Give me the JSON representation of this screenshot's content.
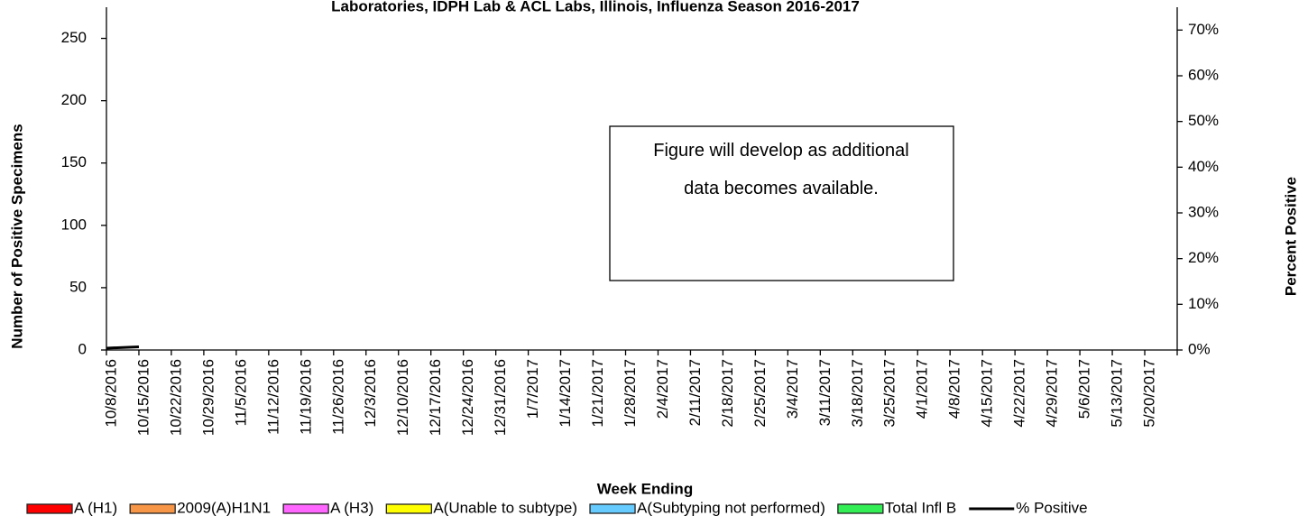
{
  "chart_data": {
    "type": "bar",
    "stacked": true,
    "title": "Laboratories, IDPH Lab & ACL Labs, Illinois, Influenza Season 2016-2017",
    "x_label": "Week Ending",
    "y_label": "Number of  Positive Specimens",
    "y2_label": "Percent Positive",
    "annotation": "Figure will develop as additional data becomes available.",
    "categories": [
      "10/8/2016",
      "10/15/2016",
      "10/22/2016",
      "10/29/2016",
      "11/5/2016",
      "11/12/2016",
      "11/19/2016",
      "11/26/2016",
      "12/3/2016",
      "12/10/2016",
      "12/17/2016",
      "12/24/2016",
      "12/31/2016",
      "1/7/2017",
      "1/14/2017",
      "1/21/2017",
      "1/28/2017",
      "2/4/2017",
      "2/11/2017",
      "2/18/2017",
      "2/25/2017",
      "3/4/2017",
      "3/11/2017",
      "3/18/2017",
      "3/25/2017",
      "4/1/2017",
      "4/8/2017",
      "4/15/2017",
      "4/22/2017",
      "4/29/2017",
      "5/6/2017",
      "5/13/2017",
      "5/20/2017"
    ],
    "ylim": [
      0,
      275
    ],
    "yticks": [
      0,
      50,
      100,
      150,
      200,
      250
    ],
    "y2lim": [
      0,
      75
    ],
    "y2ticks": [
      {
        "value": 0,
        "label": "0%"
      },
      {
        "value": 10,
        "label": "10%"
      },
      {
        "value": 20,
        "label": "20%"
      },
      {
        "value": 30,
        "label": "30%"
      },
      {
        "value": 40,
        "label": "40%"
      },
      {
        "value": 50,
        "label": "50%"
      },
      {
        "value": 60,
        "label": "60%"
      },
      {
        "value": 70,
        "label": "70%"
      }
    ],
    "series": [
      {
        "name": "A (H1)",
        "color": "#ff0000",
        "values": [
          0,
          0,
          null,
          null,
          null,
          null,
          null,
          null,
          null,
          null,
          null,
          null,
          null,
          null,
          null,
          null,
          null,
          null,
          null,
          null,
          null,
          null,
          null,
          null,
          null,
          null,
          null,
          null,
          null,
          null,
          null,
          null,
          null
        ]
      },
      {
        "name": "2009(A)H1N1",
        "color": "#f79646",
        "values": [
          0,
          0,
          null,
          null,
          null,
          null,
          null,
          null,
          null,
          null,
          null,
          null,
          null,
          null,
          null,
          null,
          null,
          null,
          null,
          null,
          null,
          null,
          null,
          null,
          null,
          null,
          null,
          null,
          null,
          null,
          null,
          null,
          null
        ]
      },
      {
        "name": "A (H3)",
        "color": "#ff66ff",
        "values": [
          0,
          0,
          null,
          null,
          null,
          null,
          null,
          null,
          null,
          null,
          null,
          null,
          null,
          null,
          null,
          null,
          null,
          null,
          null,
          null,
          null,
          null,
          null,
          null,
          null,
          null,
          null,
          null,
          null,
          null,
          null,
          null,
          null
        ]
      },
      {
        "name": "A(Unable to subtype)",
        "color": "#ffff00",
        "values": [
          0,
          0,
          null,
          null,
          null,
          null,
          null,
          null,
          null,
          null,
          null,
          null,
          null,
          null,
          null,
          null,
          null,
          null,
          null,
          null,
          null,
          null,
          null,
          null,
          null,
          null,
          null,
          null,
          null,
          null,
          null,
          null,
          null
        ]
      },
      {
        "name": "A(Subtyping not performed)",
        "color": "#66ccff",
        "values": [
          0,
          0,
          null,
          null,
          null,
          null,
          null,
          null,
          null,
          null,
          null,
          null,
          null,
          null,
          null,
          null,
          null,
          null,
          null,
          null,
          null,
          null,
          null,
          null,
          null,
          null,
          null,
          null,
          null,
          null,
          null,
          null,
          null
        ]
      },
      {
        "name": "Total Infl B",
        "color": "#33ee55",
        "values": [
          0,
          0,
          null,
          null,
          null,
          null,
          null,
          null,
          null,
          null,
          null,
          null,
          null,
          null,
          null,
          null,
          null,
          null,
          null,
          null,
          null,
          null,
          null,
          null,
          null,
          null,
          null,
          null,
          null,
          null,
          null,
          null,
          null
        ]
      },
      {
        "name": "% Positive",
        "color": "#000000",
        "type": "line",
        "axis": "y2",
        "values": [
          0.4,
          0.7,
          null,
          null,
          null,
          null,
          null,
          null,
          null,
          null,
          null,
          null,
          null,
          null,
          null,
          null,
          null,
          null,
          null,
          null,
          null,
          null,
          null,
          null,
          null,
          null,
          null,
          null,
          null,
          null,
          null,
          null,
          null
        ]
      }
    ]
  }
}
